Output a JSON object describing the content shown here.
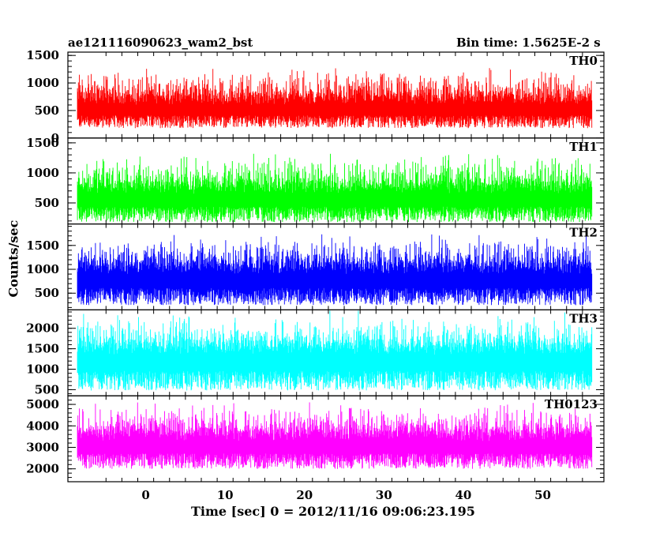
{
  "chart_data": {
    "type": "line",
    "title_left": "ae121116090623_wam2_bst",
    "title_right": "Bin time: 1.5625E-2 s",
    "xlabel": "Time [sec] 0 = 2012/11/16 09:06:23.195",
    "ylabel": "Counts/sec",
    "xlim": [
      -9.8,
      57.7
    ],
    "x_range": [
      -8.6,
      56.2
    ],
    "xticks": [
      0,
      10,
      20,
      30,
      40,
      50
    ],
    "panels": [
      {
        "name": "TH0",
        "color": "#ff0000",
        "ylim": [
          0,
          1560
        ],
        "yticks": [
          0,
          500,
          1000,
          1500
        ],
        "base": 180,
        "mean": 600,
        "amp": 560
      },
      {
        "name": "TH1",
        "color": "#00ff00",
        "ylim": [
          150,
          1580
        ],
        "yticks": [
          500,
          1000,
          1500
        ],
        "base": 180,
        "mean": 650,
        "amp": 560
      },
      {
        "name": "TH2",
        "color": "#0000ff",
        "ylim": [
          150,
          1950
        ],
        "yticks": [
          500,
          1000,
          1500
        ],
        "base": 250,
        "mean": 900,
        "amp": 700
      },
      {
        "name": "TH3",
        "color": "#00ffff",
        "ylim": [
          350,
          2450
        ],
        "yticks": [
          500,
          1000,
          1500,
          2000
        ],
        "base": 480,
        "mean": 1350,
        "amp": 850
      },
      {
        "name": "TH0123",
        "color": "#ff00ff",
        "ylim": [
          1400,
          5400
        ],
        "yticks": [
          2000,
          3000,
          4000,
          5000
        ],
        "base": 2000,
        "mean": 3300,
        "amp": 1500
      }
    ]
  }
}
